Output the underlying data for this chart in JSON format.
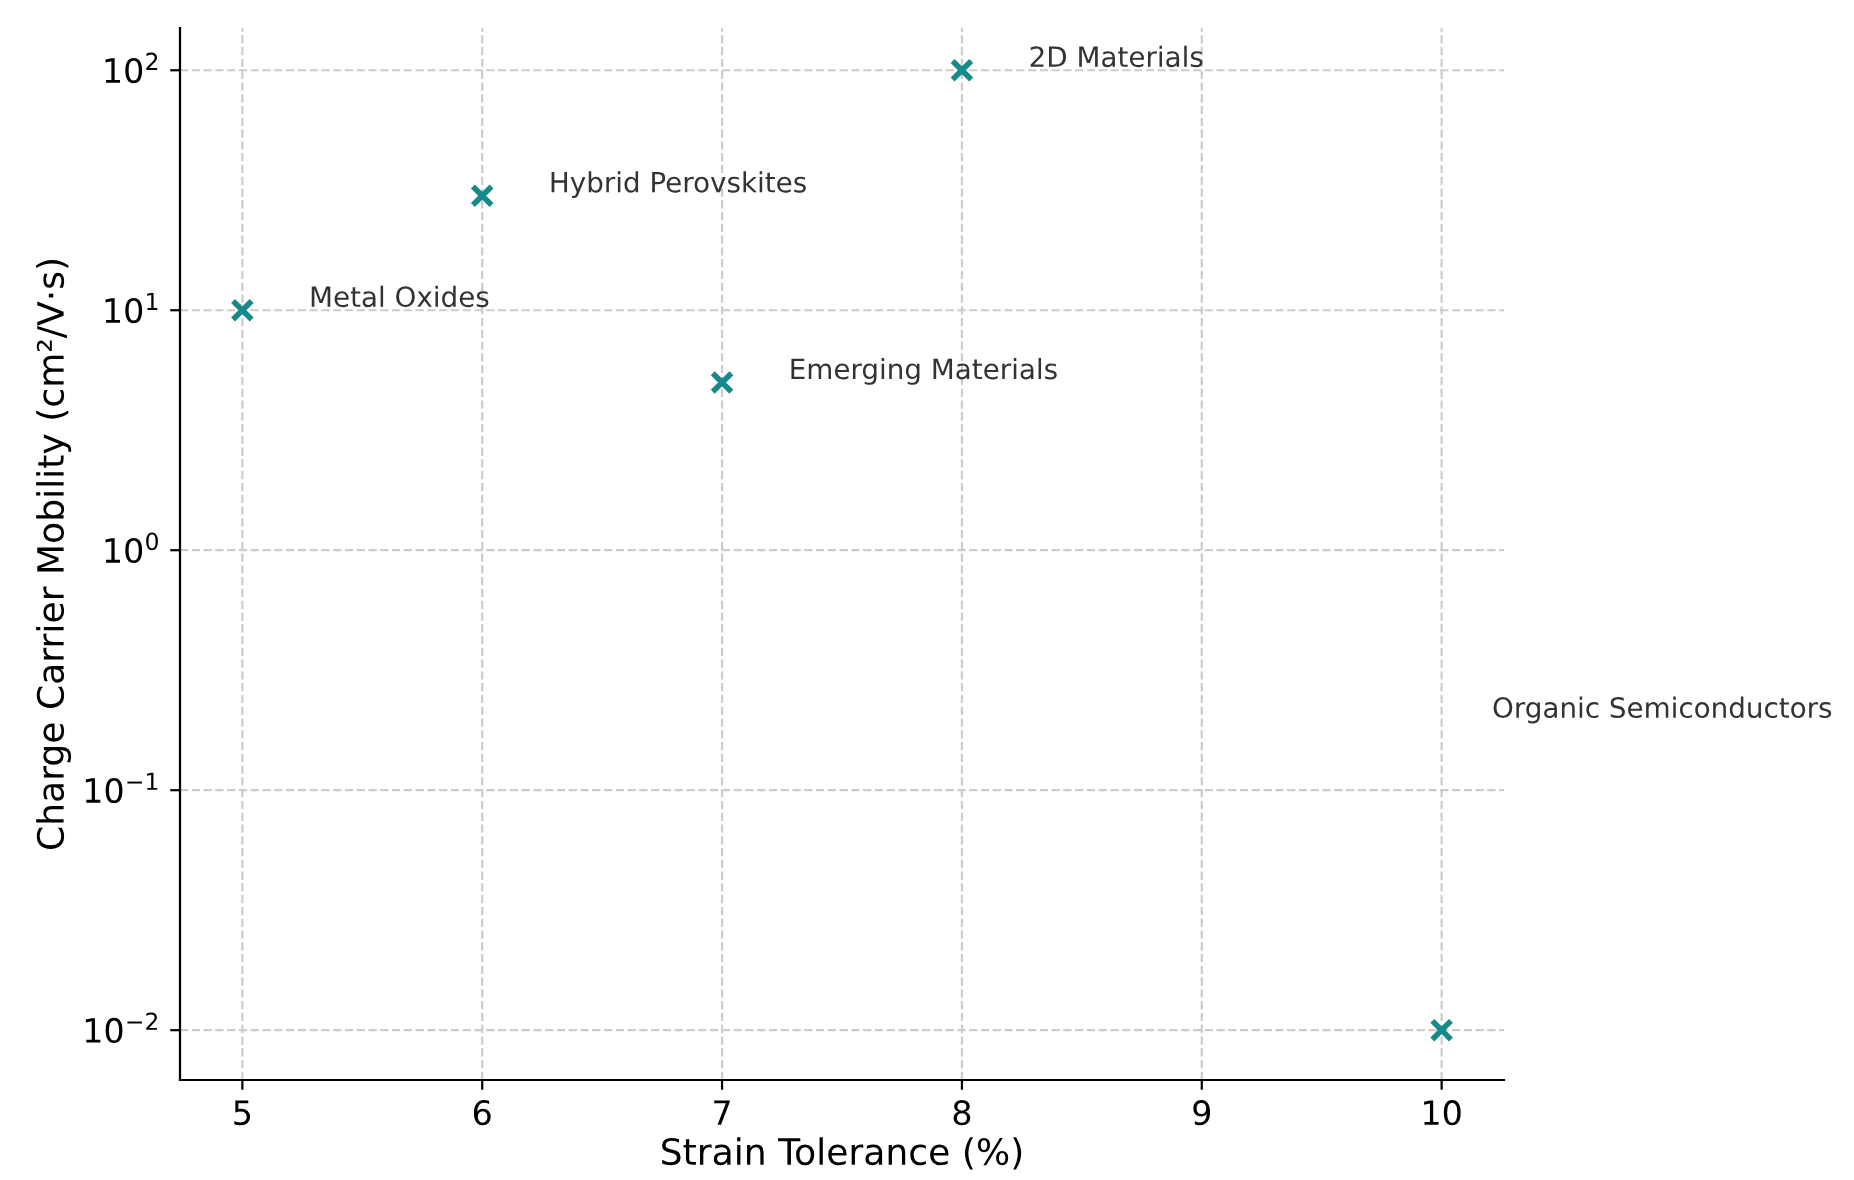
{
  "chart_data": {
    "type": "scatter",
    "xlabel": "Strain Tolerance (%)",
    "ylabel": "Charge Carrier Mobility (cm²/V·s)",
    "x": [
      5,
      6,
      7,
      8,
      10
    ],
    "series": [
      {
        "color": "#168a8a",
        "values": [
          10,
          30,
          5,
          100,
          0.01
        ]
      }
    ],
    "marker": "cross",
    "log": "y",
    "grid": true,
    "xlim": [
      4.74,
      10.26
    ],
    "xticks": [
      5,
      6,
      7,
      8,
      9,
      10
    ],
    "ylim": [
      0.0062,
      150
    ],
    "yticks": [
      {
        "value": 0.01,
        "label": "10$^{−2}$"
      },
      {
        "value": 0.1,
        "label": "10$^{−1}$"
      },
      {
        "value": 1,
        "label": "10$^{0}$"
      },
      {
        "value": 10,
        "label": "10$^{1}$"
      },
      {
        "value": 100,
        "label": "10$^{2}$"
      }
    ],
    "annotations": [
      {
        "text": "Metal Oxides",
        "x": 5,
        "y": 10
      },
      {
        "text": "Hybrid Perovskites",
        "x": 6,
        "y": 30
      },
      {
        "text": "Emerging Materials",
        "x": 7,
        "y": 5
      },
      {
        "text": "2D Materials",
        "x": 8,
        "y": 100
      },
      "Organic Semiconductors"
    ]
  }
}
